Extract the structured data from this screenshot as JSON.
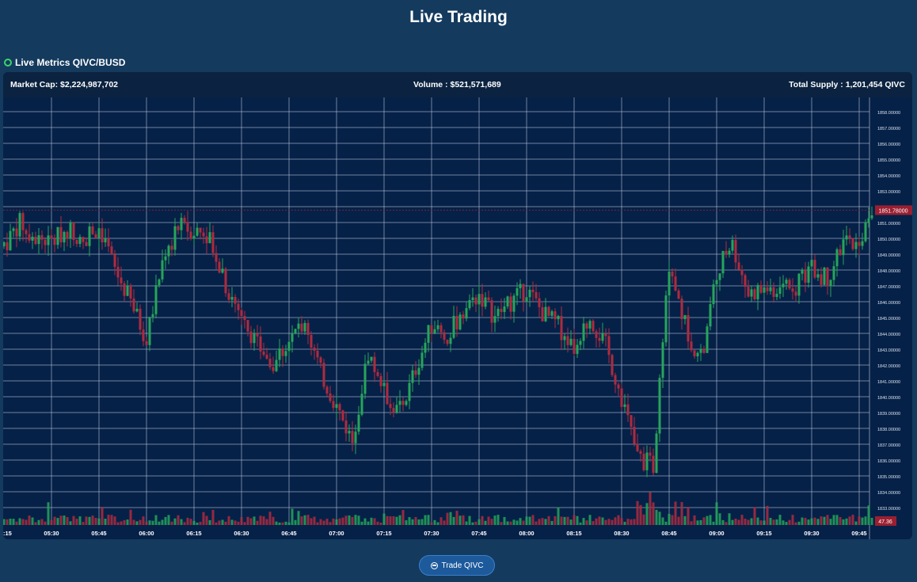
{
  "page": {
    "title": "Live Trading"
  },
  "section": {
    "title": "Live Metrics QIVC/BUSD",
    "status_color": "#3bd46b"
  },
  "metrics": {
    "market_cap": "Market Cap: $2,224,987,702",
    "volume": "Volume : $521,571,689",
    "total_supply": "Total Supply : 1,201,454 QIVC"
  },
  "actions": {
    "trade_label": "Trade QIVC",
    "trade_icon": "coin-icon"
  },
  "colors": {
    "up": "#26a55a",
    "down": "#b02a3e",
    "grid": "#c5d2e0",
    "price_tag": "#9b1f31"
  },
  "chart_data": {
    "type": "candlestick",
    "pair": "QIVC/BUSD",
    "grid": true,
    "ylim": [
      1832.5,
      1858.5
    ],
    "y_ticks": [
      "1858.00000",
      "1857.00000",
      "1856.00000",
      "1855.00000",
      "1854.00000",
      "1853.00000",
      "1852.00000",
      "1851.00000",
      "1850.00000",
      "1849.00000",
      "1848.00000",
      "1847.00000",
      "1846.00000",
      "1845.00000",
      "1844.00000",
      "1843.00000",
      "1842.00000",
      "1841.00000",
      "1840.00000",
      "1839.00000",
      "1838.00000",
      "1837.00000",
      "1836.00000",
      "1835.00000",
      "1834.00000",
      "1833.00000"
    ],
    "x_ticks": [
      ":15",
      "05:30",
      "05:45",
      "06:00",
      "06:15",
      "06:30",
      "06:45",
      "07:00",
      "07:15",
      "07:30",
      "07:45",
      "08:00",
      "08:15",
      "08:30",
      "08:45",
      "09:00",
      "09:15",
      "09:30",
      "09:45"
    ],
    "x_start": "05:15",
    "x_end": "09:49",
    "current_price": "1851.78000",
    "volume_label": "47.36",
    "close_anchors": [
      [
        "05:15",
        1849.5
      ],
      [
        "05:20",
        1851.0
      ],
      [
        "05:25",
        1850.0
      ],
      [
        "05:30",
        1849.8
      ],
      [
        "05:35",
        1850.6
      ],
      [
        "05:40",
        1850.2
      ],
      [
        "05:45",
        1850.8
      ],
      [
        "05:50",
        1848.0
      ],
      [
        "05:55",
        1846.0
      ],
      [
        "06:00",
        1843.6
      ],
      [
        "06:05",
        1848.5
      ],
      [
        "06:10",
        1850.8
      ],
      [
        "06:15",
        1850.5
      ],
      [
        "06:20",
        1850.3
      ],
      [
        "06:25",
        1847.0
      ],
      [
        "06:30",
        1845.2
      ],
      [
        "06:35",
        1843.2
      ],
      [
        "06:40",
        1842.2
      ],
      [
        "06:45",
        1843.5
      ],
      [
        "06:50",
        1844.8
      ],
      [
        "06:55",
        1841.5
      ],
      [
        "07:00",
        1839.4
      ],
      [
        "07:05",
        1837.2
      ],
      [
        "07:10",
        1842.8
      ],
      [
        "07:15",
        1840.3
      ],
      [
        "07:20",
        1838.8
      ],
      [
        "07:25",
        1841.8
      ],
      [
        "07:30",
        1844.5
      ],
      [
        "07:35",
        1843.8
      ],
      [
        "07:40",
        1845.5
      ],
      [
        "07:45",
        1846.5
      ],
      [
        "07:50",
        1845.0
      ],
      [
        "07:55",
        1846.0
      ],
      [
        "08:00",
        1846.8
      ],
      [
        "08:05",
        1845.3
      ],
      [
        "08:10",
        1844.5
      ],
      [
        "08:15",
        1843.0
      ],
      [
        "08:20",
        1845.0
      ],
      [
        "08:25",
        1843.2
      ],
      [
        "08:30",
        1840.0
      ],
      [
        "08:35",
        1836.2
      ],
      [
        "08:40",
        1835.6
      ],
      [
        "08:45",
        1848.5
      ],
      [
        "08:50",
        1844.5
      ],
      [
        "08:55",
        1842.2
      ],
      [
        "09:00",
        1848.0
      ],
      [
        "09:05",
        1849.6
      ],
      [
        "09:10",
        1846.5
      ],
      [
        "09:15",
        1846.8
      ],
      [
        "09:20",
        1846.8
      ],
      [
        "09:25",
        1847.2
      ],
      [
        "09:30",
        1848.0
      ],
      [
        "09:35",
        1847.5
      ],
      [
        "09:40",
        1849.8
      ],
      [
        "09:45",
        1849.5
      ],
      [
        "09:49",
        1851.8
      ]
    ]
  }
}
